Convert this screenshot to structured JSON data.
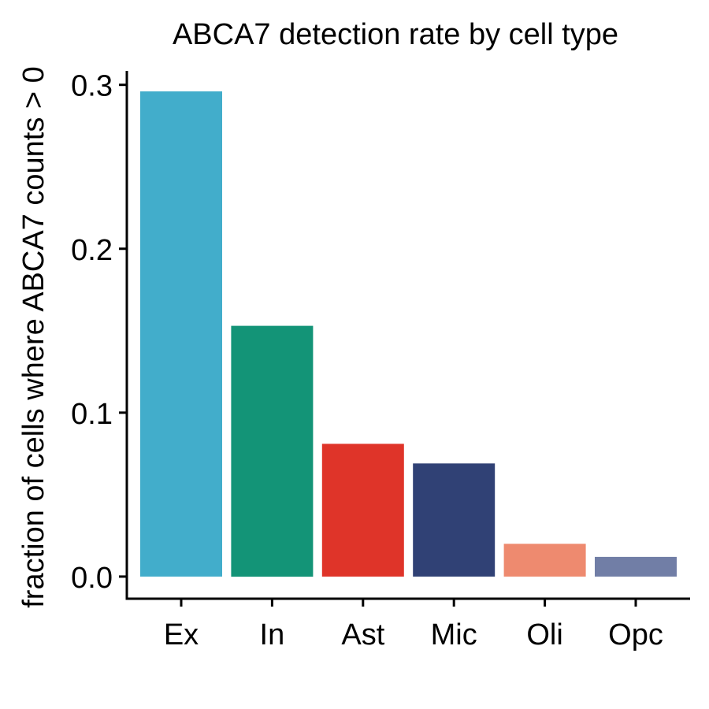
{
  "chart_data": {
    "type": "bar",
    "title": "ABCA7 detection rate by cell type",
    "xlabel": "",
    "ylabel": "fraction of cells where ABCA7 counts > 0",
    "categories": [
      "Ex",
      "In",
      "Ast",
      "Mic",
      "Oli",
      "Opc"
    ],
    "values": [
      0.296,
      0.153,
      0.081,
      0.069,
      0.02,
      0.012
    ],
    "colors": [
      "#42adcb",
      "#139477",
      "#df3429",
      "#304175",
      "#ee8a6f",
      "#717ea6"
    ],
    "ylim": [
      -0.0135,
      0.3085
    ],
    "yticks": [
      "0.0",
      "0.1",
      "0.2",
      "0.3"
    ],
    "grid": false,
    "legend": "none"
  }
}
